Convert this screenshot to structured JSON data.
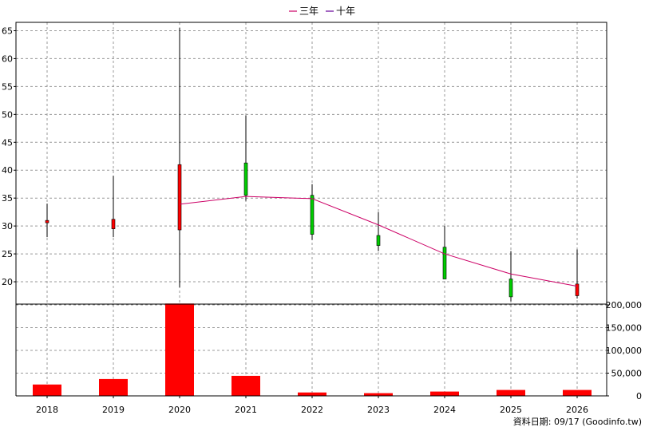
{
  "chart_data": {
    "type": "candlestick",
    "categories": [
      "2018",
      "2019",
      "2020",
      "2021",
      "2022",
      "2023",
      "2024",
      "2025",
      "2026"
    ],
    "ohlc": [
      {
        "open": 30.6,
        "high": 34.0,
        "low": 28.0,
        "close": 31.0
      },
      {
        "open": 29.5,
        "high": 39.0,
        "low": 28.0,
        "close": 31.2
      },
      {
        "open": 29.3,
        "high": 65.5,
        "low": 19.0,
        "close": 41.0
      },
      {
        "open": 41.3,
        "high": 49.8,
        "low": 34.5,
        "close": 35.5
      },
      {
        "open": 35.5,
        "high": 37.5,
        "low": 27.5,
        "close": 28.5
      },
      {
        "open": 28.3,
        "high": 32.5,
        "low": 25.5,
        "close": 26.5
      },
      {
        "open": 26.2,
        "high": 30.0,
        "low": 20.5,
        "close": 20.5
      },
      {
        "open": 20.5,
        "high": 25.5,
        "low": 16.5,
        "close": 17.3
      },
      {
        "open": 17.5,
        "high": 25.8,
        "low": 17.0,
        "close": 19.6
      }
    ],
    "series": [
      {
        "name": "三年",
        "color": "#cc0066",
        "values": [
          null,
          null,
          33.9,
          35.3,
          34.9,
          30.2,
          25.0,
          21.4,
          19.2
        ]
      },
      {
        "name": "十年",
        "color": "#660099",
        "values": [
          null,
          null,
          null,
          null,
          null,
          null,
          null,
          null,
          null
        ]
      }
    ],
    "volume": [
      25000,
      37000,
      203000,
      44000,
      7500,
      6000,
      9500,
      13000,
      13000
    ],
    "price_axis": {
      "min": 16,
      "max": 66.5,
      "ticks": [
        20,
        25,
        30,
        35,
        40,
        45,
        50,
        55,
        60,
        65
      ]
    },
    "volume_axis": {
      "min": 0,
      "max": 200000,
      "ticks": [
        "0",
        "50,000",
        "100,000",
        "150,000",
        "200,000"
      ],
      "tick_values": [
        0,
        50000,
        100000,
        150000,
        200000
      ]
    },
    "legend_position": "top-center",
    "grid": true,
    "colors": {
      "up": "#ff0000",
      "down": "#00cc00",
      "volume": "#ff0000",
      "grid": "#999999"
    }
  },
  "footer_note": "資料日期: 09/17  (Goodinfo.tw)"
}
